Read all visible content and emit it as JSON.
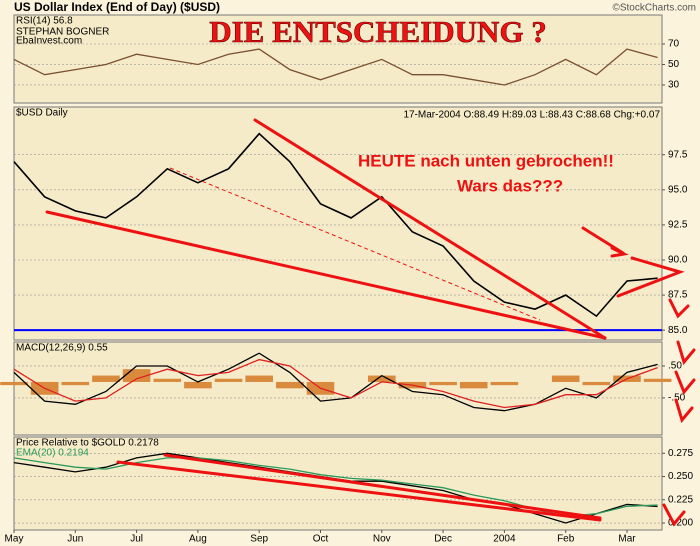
{
  "header": {
    "title": "US Dollar Index (End of Day) ($USD)",
    "source": "©StockCharts.com"
  },
  "headline": "DIE ENTSCHEIDUNG ?",
  "annotations": [
    "HEUTE nach unten gebrochen!!",
    "Wars das???"
  ],
  "chart_data": [
    {
      "type": "line",
      "title": "RSI(14) 56.8",
      "notes": [
        "STEPHAN BOGNER",
        "EbaInvest.com"
      ],
      "ylim": [
        12.4,
        98.3
      ],
      "yticks": [
        70,
        50,
        30
      ],
      "grid": true,
      "series": [
        {
          "color": "#7a5030",
          "values": [
            55,
            40,
            45,
            50,
            60,
            55,
            50,
            60,
            65,
            45,
            35,
            45,
            55,
            40,
            40,
            35,
            30,
            40,
            55,
            40,
            65,
            56.8
          ]
        }
      ]
    },
    {
      "type": "line",
      "title": "$USD Daily",
      "subtitle": "17-Mar-2004 O:88.49 H:89.03 L:88.43 C:88.68 Chg:+0.07",
      "ylim": [
        84.3,
        100.9
      ],
      "yticks": [
        97.5,
        {
          "value": 95,
          "label": "95.0"
        },
        92.5,
        {
          "value": 90,
          "label": "90.0"
        },
        87.5,
        {
          "value": 85,
          "label": "85.0"
        }
      ],
      "grid": true,
      "reference_line": {
        "value": 85,
        "color": "#0000ff"
      },
      "series": [
        {
          "color": "#000000",
          "values": [
            97.0,
            94.5,
            93.5,
            93.0,
            94.5,
            96.5,
            95.5,
            96.5,
            99.0,
            97.0,
            94.0,
            93.0,
            94.5,
            92.0,
            91.0,
            88.5,
            87.0,
            86.5,
            87.5,
            86.0,
            88.5,
            88.7
          ]
        }
      ]
    },
    {
      "type": "line",
      "title": "MACD(12,26,9) 0.55",
      "ylim": [
        -1.66,
        1.25
      ],
      "yticks": [
        {
          "value": 0.5,
          "label": ".50"
        },
        {
          "value": -0.5,
          "label": "-.50"
        }
      ],
      "grid": true,
      "histogram": {
        "color": "#d98a3c",
        "values": [
          -0.1,
          -0.4,
          -0.1,
          0.2,
          0.4,
          0.1,
          -0.2,
          0.1,
          0.2,
          -0.2,
          -0.4,
          0,
          0.2,
          -0.2,
          -0.1,
          -0.2,
          -0.1,
          0,
          0.2,
          -0.1,
          0.2,
          0.1
        ]
      },
      "series": [
        {
          "color": "#000000",
          "values": [
            0.3,
            -0.6,
            -0.7,
            -0.3,
            0.5,
            0.5,
            0,
            0.4,
            0.9,
            0.3,
            -0.6,
            -0.5,
            0.2,
            -0.3,
            -0.4,
            -0.8,
            -0.9,
            -0.7,
            -0.2,
            -0.5,
            0.3,
            0.55
          ]
        },
        {
          "color": "#e02020",
          "values": [
            0.4,
            -0.2,
            -0.6,
            -0.5,
            0.1,
            0.4,
            0.2,
            0.3,
            0.7,
            0.5,
            -0.2,
            -0.5,
            0,
            -0.1,
            -0.3,
            -0.6,
            -0.8,
            -0.7,
            -0.4,
            -0.4,
            0.1,
            0.45
          ]
        }
      ]
    },
    {
      "type": "line",
      "title": "Price Relative to $GOLD 0.2178",
      "ylim": [
        0.1925,
        0.2925
      ],
      "yticks": [
        0.275,
        {
          "value": 0.25,
          "label": "0.250"
        },
        0.225,
        {
          "value": 0.2,
          "label": "0.200"
        }
      ],
      "grid": true,
      "categories": [
        "May",
        null,
        "Jun",
        null,
        "Jul",
        null,
        "Aug",
        null,
        "Sep",
        null,
        "Oct",
        null,
        "Nov",
        null,
        "Dec",
        null,
        "2004",
        null,
        "Feb",
        null,
        "Mar",
        null
      ],
      "series": [
        {
          "color": "#000000",
          "values": [
            0.265,
            0.26,
            0.255,
            0.26,
            0.27,
            0.275,
            0.27,
            0.265,
            0.26,
            0.255,
            0.25,
            0.245,
            0.245,
            0.24,
            0.235,
            0.225,
            0.22,
            0.21,
            0.2,
            0.21,
            0.22,
            0.2178
          ]
        },
        {
          "name": "EMA(20) 0.2194",
          "color": "#2a9a5a",
          "values": [
            0.27,
            0.265,
            0.26,
            0.258,
            0.265,
            0.27,
            0.27,
            0.267,
            0.262,
            0.258,
            0.252,
            0.248,
            0.246,
            0.242,
            0.238,
            0.23,
            0.224,
            0.215,
            0.207,
            0.21,
            0.218,
            0.2194
          ]
        }
      ]
    }
  ]
}
